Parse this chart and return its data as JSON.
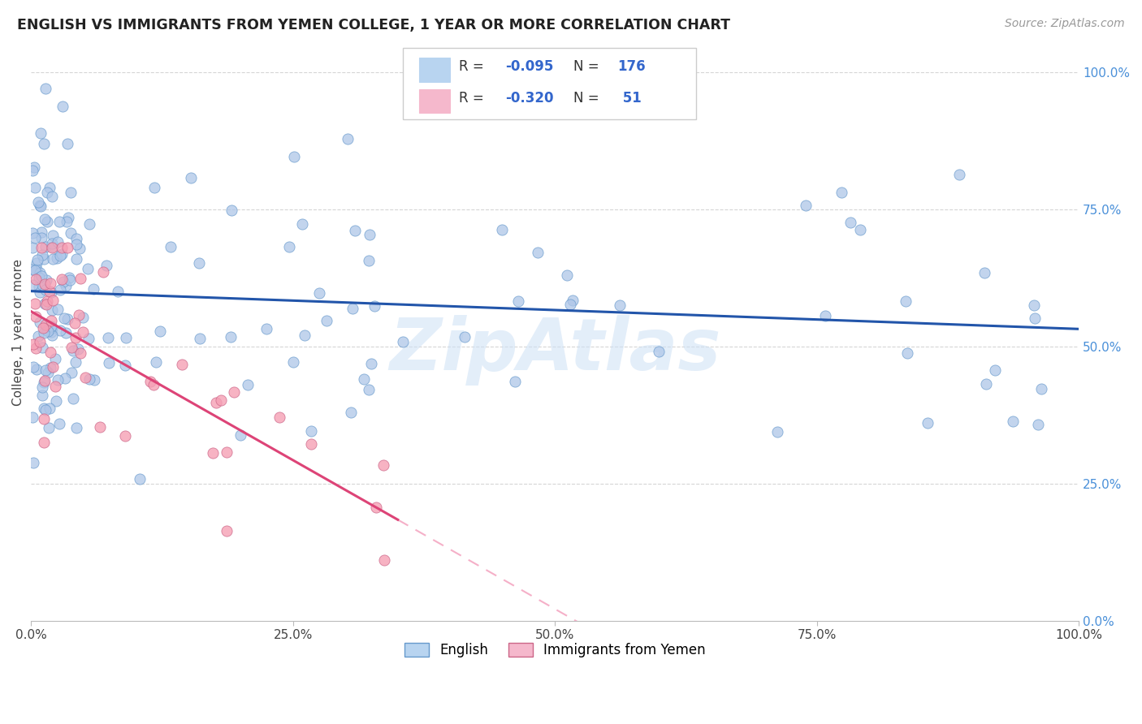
{
  "title": "ENGLISH VS IMMIGRANTS FROM YEMEN COLLEGE, 1 YEAR OR MORE CORRELATION CHART",
  "source_text": "Source: ZipAtlas.com",
  "ylabel": "College, 1 year or more",
  "xmin": 0.0,
  "xmax": 1.0,
  "ymin": 0.0,
  "ymax": 1.05,
  "x_tick_labels": [
    "0.0%",
    "25.0%",
    "50.0%",
    "75.0%",
    "100.0%"
  ],
  "x_tick_values": [
    0.0,
    0.25,
    0.5,
    0.75,
    1.0
  ],
  "y_tick_labels_right": [
    "0.0%",
    "25.0%",
    "50.0%",
    "75.0%",
    "100.0%"
  ],
  "y_tick_values_right": [
    0.0,
    0.25,
    0.5,
    0.75,
    1.0
  ],
  "blue_scatter_color": "#aec6e8",
  "blue_edge_color": "#6699cc",
  "blue_line_color": "#2255aa",
  "pink_scatter_color": "#f5a0b5",
  "pink_edge_color": "#cc6688",
  "pink_line_color": "#dd4477",
  "pink_dash_color": "#f5b0c8",
  "watermark_color": "#cce0f5",
  "watermark_text": "ZipAtlas",
  "background_color": "#ffffff",
  "grid_color": "#cccccc",
  "R_eng": -0.095,
  "N_eng": 176,
  "R_yem": -0.32,
  "N_yem": 51,
  "legend_label_eng": "English",
  "legend_label_yem": "Immigrants from Yemen"
}
